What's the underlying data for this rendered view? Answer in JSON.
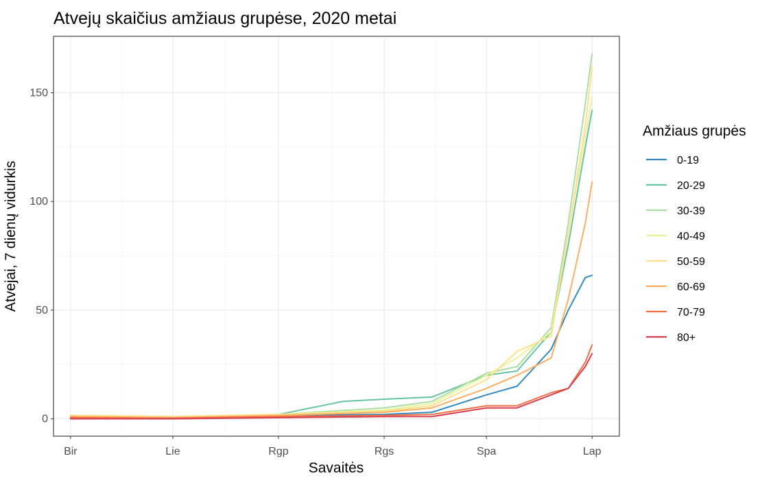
{
  "chart_data": {
    "type": "line",
    "title": "Atvejų  skaičius amžiaus grupėse, 2020 metai",
    "xlabel": "Savaitės",
    "ylabel": "Atvejai, 7 dienų vidurkis",
    "x_ticks": [
      "Bir",
      "Lie",
      "Rgp",
      "Rgs",
      "Spa",
      "Lap"
    ],
    "x_tick_dates": [
      "2020-06-01",
      "2020-07-01",
      "2020-08-01",
      "2020-09-01",
      "2020-10-01",
      "2020-11-01"
    ],
    "xlim": [
      "2020-05-27",
      "2020-11-09"
    ],
    "y_ticks": [
      0,
      50,
      100,
      150
    ],
    "ylim": [
      -8,
      176
    ],
    "grid": true,
    "legend": {
      "title": "Amžiaus grupės",
      "position": "right"
    },
    "series": [
      {
        "name": "0-19",
        "color": "#3288bd",
        "x": [
          "2020-06-01",
          "2020-07-01",
          "2020-08-01",
          "2020-09-01",
          "2020-09-15",
          "2020-10-01",
          "2020-10-10",
          "2020-10-20",
          "2020-10-25",
          "2020-10-30",
          "2020-11-01"
        ],
        "y": [
          0.5,
          0.3,
          1.5,
          2,
          3,
          11,
          15,
          32,
          50,
          65,
          66
        ]
      },
      {
        "name": "20-29",
        "color": "#66c2a5",
        "x": [
          "2020-06-01",
          "2020-07-01",
          "2020-08-01",
          "2020-08-20",
          "2020-09-01",
          "2020-09-15",
          "2020-10-01",
          "2020-10-10",
          "2020-10-20",
          "2020-10-25",
          "2020-10-30",
          "2020-11-01"
        ],
        "y": [
          1,
          0.5,
          2,
          8,
          9,
          10,
          20,
          22,
          40,
          80,
          125,
          142
        ]
      },
      {
        "name": "30-39",
        "color": "#abdda4",
        "x": [
          "2020-06-01",
          "2020-07-01",
          "2020-08-01",
          "2020-09-01",
          "2020-09-15",
          "2020-10-01",
          "2020-10-10",
          "2020-10-20",
          "2020-10-25",
          "2020-10-30",
          "2020-11-01"
        ],
        "y": [
          1.5,
          1,
          2,
          5,
          8,
          21,
          24,
          42,
          90,
          145,
          168
        ]
      },
      {
        "name": "40-49",
        "color": "#e6f598",
        "x": [
          "2020-06-01",
          "2020-07-01",
          "2020-08-01",
          "2020-09-01",
          "2020-09-15",
          "2020-10-01",
          "2020-10-10",
          "2020-10-20",
          "2020-10-25",
          "2020-10-30",
          "2020-11-01"
        ],
        "y": [
          1.5,
          1,
          2,
          4,
          7,
          20,
          28,
          40,
          85,
          130,
          148
        ]
      },
      {
        "name": "50-59",
        "color": "#fee08b",
        "x": [
          "2020-06-01",
          "2020-07-01",
          "2020-08-01",
          "2020-09-01",
          "2020-09-15",
          "2020-10-01",
          "2020-10-10",
          "2020-10-20",
          "2020-10-25",
          "2020-10-30",
          "2020-11-01"
        ],
        "y": [
          1.5,
          1,
          2,
          3.5,
          6,
          18,
          31,
          38,
          85,
          135,
          162
        ]
      },
      {
        "name": "60-69",
        "color": "#fdae61",
        "x": [
          "2020-06-01",
          "2020-07-01",
          "2020-08-01",
          "2020-09-01",
          "2020-09-15",
          "2020-10-01",
          "2020-10-10",
          "2020-10-20",
          "2020-10-25",
          "2020-10-30",
          "2020-11-01"
        ],
        "y": [
          1,
          0.5,
          1.5,
          3,
          5,
          14,
          20,
          28,
          55,
          90,
          109
        ]
      },
      {
        "name": "70-79",
        "color": "#f46d43",
        "x": [
          "2020-06-01",
          "2020-07-01",
          "2020-08-01",
          "2020-09-01",
          "2020-09-15",
          "2020-10-01",
          "2020-10-10",
          "2020-10-20",
          "2020-10-25",
          "2020-10-30",
          "2020-11-01"
        ],
        "y": [
          0.5,
          0.3,
          1,
          1.5,
          2,
          6,
          6,
          12,
          14,
          26,
          34
        ]
      },
      {
        "name": "80+",
        "color": "#d53e4f",
        "x": [
          "2020-06-01",
          "2020-07-01",
          "2020-08-01",
          "2020-09-01",
          "2020-09-15",
          "2020-10-01",
          "2020-10-10",
          "2020-10-20",
          "2020-10-25",
          "2020-10-30",
          "2020-11-01"
        ],
        "y": [
          0,
          0,
          0.5,
          1,
          1,
          5,
          5,
          11,
          14,
          24,
          30
        ]
      }
    ]
  }
}
